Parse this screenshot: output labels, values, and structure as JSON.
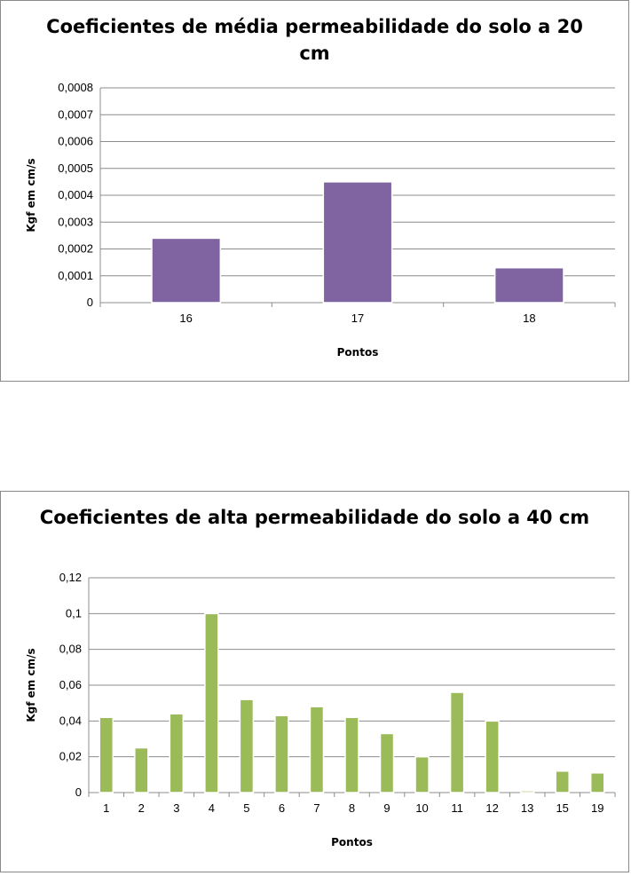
{
  "chart_data": [
    {
      "type": "bar",
      "title": "Coeficientes de média permeabilidade do solo a 20 cm",
      "xlabel": "Pontos",
      "ylabel": "Kgf em cm/s",
      "categories": [
        "16",
        "17",
        "18"
      ],
      "values": [
        0.00024,
        0.00045,
        0.00013
      ],
      "ylim": [
        0,
        0.0008
      ],
      "yticks": [
        "0",
        "0,0001",
        "0,0002",
        "0,0003",
        "0,0004",
        "0,0005",
        "0,0006",
        "0,0007",
        "0,0008"
      ],
      "color": "#8064a2",
      "grid": true,
      "legend": "none"
    },
    {
      "type": "bar",
      "title": "Coeficientes de alta permeabilidade do solo a 40 cm",
      "xlabel": "Pontos",
      "ylabel": "Kgf em cm/s",
      "categories": [
        "1",
        "2",
        "3",
        "4",
        "5",
        "6",
        "7",
        "8",
        "9",
        "10",
        "11",
        "12",
        "13",
        "15",
        "19"
      ],
      "values": [
        0.042,
        0.025,
        0.044,
        0.1,
        0.052,
        0.043,
        0.048,
        0.042,
        0.033,
        0.02,
        0.056,
        0.04,
        0.001,
        0.012,
        0.011
      ],
      "ylim": [
        0,
        0.12
      ],
      "yticks": [
        "0",
        "0,02",
        "0,04",
        "0,06",
        "0,08",
        "0,1",
        "0,12"
      ],
      "color": "#9bbb59",
      "grid": true,
      "legend": "none"
    }
  ]
}
